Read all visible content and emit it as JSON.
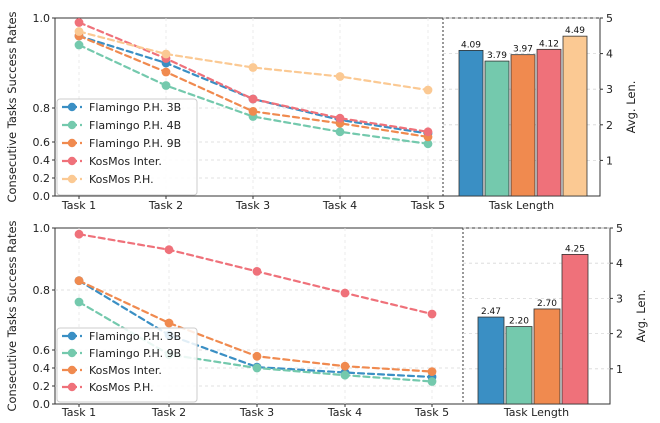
{
  "chart_data": [
    {
      "type": "line",
      "categories": [
        "Task 1",
        "Task 2",
        "Task 3",
        "Task 4",
        "Task 5"
      ],
      "ylabel": "Consecutive Tasks Success Rates",
      "yticks": [
        "0.0",
        "0.2",
        "0.4",
        "0.6",
        "0.8",
        "1.0"
      ],
      "series": [
        {
          "name": "Flamingo P.H. 3B",
          "color": "#3a8fc4",
          "values": [
            0.96,
            0.9,
            0.82,
            0.73,
            0.65
          ]
        },
        {
          "name": "Flamingo P.H. 4B",
          "color": "#74c9ad",
          "values": [
            0.94,
            0.85,
            0.75,
            0.66,
            0.58
          ]
        },
        {
          "name": "Flamingo P.H. 9B",
          "color": "#f08a4f",
          "values": [
            0.96,
            0.88,
            0.78,
            0.71,
            0.63
          ]
        },
        {
          "name": "KosMos Inter.",
          "color": "#ef717a",
          "values": [
            0.99,
            0.91,
            0.82,
            0.74,
            0.66
          ]
        },
        {
          "name": "KosMos P.H.",
          "color": "#fbc993",
          "values": [
            0.97,
            0.92,
            0.89,
            0.87,
            0.84
          ]
        }
      ],
      "legend": "lower-left"
    },
    {
      "type": "bar",
      "categories": [
        "Flamingo P.H. 3B",
        "Flamingo P.H. 4B",
        "Flamingo P.H. 9B",
        "KosMos Inter.",
        "KosMos P.H."
      ],
      "xlabel": "Task Length",
      "ylabel": "Avg. Len.",
      "yticks": [
        "1",
        "2",
        "3",
        "4",
        "5"
      ],
      "ylim": [
        0,
        5
      ],
      "values": [
        4.09,
        3.79,
        3.97,
        4.12,
        4.49
      ],
      "value_labels": [
        "4.09",
        "3.79",
        "3.97",
        "4.12",
        "4.49"
      ],
      "colors": [
        "#3a8fc4",
        "#74c9ad",
        "#f08a4f",
        "#ef717a",
        "#fbc993"
      ]
    },
    {
      "type": "line",
      "categories": [
        "Task 1",
        "Task 2",
        "Task 3",
        "Task 4",
        "Task 5"
      ],
      "ylabel": "Consecutive Tasks Success Rates",
      "yticks": [
        "0.0",
        "0.2",
        "0.4",
        "0.6",
        "0.8",
        "1.0"
      ],
      "series": [
        {
          "name": "Flamingo P.H. 3B",
          "color": "#3a8fc4",
          "values": [
            0.83,
            0.65,
            0.41,
            0.35,
            0.3
          ]
        },
        {
          "name": "Flamingo P.H. 9B",
          "color": "#74c9ad",
          "values": [
            0.76,
            0.55,
            0.4,
            0.32,
            0.25
          ]
        },
        {
          "name": "KosMos Inter.",
          "color": "#f08a4f",
          "values": [
            0.83,
            0.69,
            0.53,
            0.42,
            0.36
          ]
        },
        {
          "name": "KosMos P.H.",
          "color": "#ef717a",
          "values": [
            0.98,
            0.93,
            0.86,
            0.79,
            0.72
          ]
        }
      ],
      "legend": "lower-left"
    },
    {
      "type": "bar",
      "categories": [
        "Flamingo P.H. 3B",
        "Flamingo P.H. 9B",
        "KosMos Inter.",
        "KosMos P.H."
      ],
      "xlabel": "Task Length",
      "ylabel": "Avg. Len.",
      "yticks": [
        "1",
        "2",
        "3",
        "4",
        "5"
      ],
      "ylim": [
        0,
        5
      ],
      "values": [
        2.47,
        2.2,
        2.7,
        4.25
      ],
      "value_labels": [
        "2.47",
        "2.20",
        "2.70",
        "4.25"
      ],
      "colors": [
        "#3a8fc4",
        "#74c9ad",
        "#f08a4f",
        "#ef717a"
      ]
    }
  ]
}
